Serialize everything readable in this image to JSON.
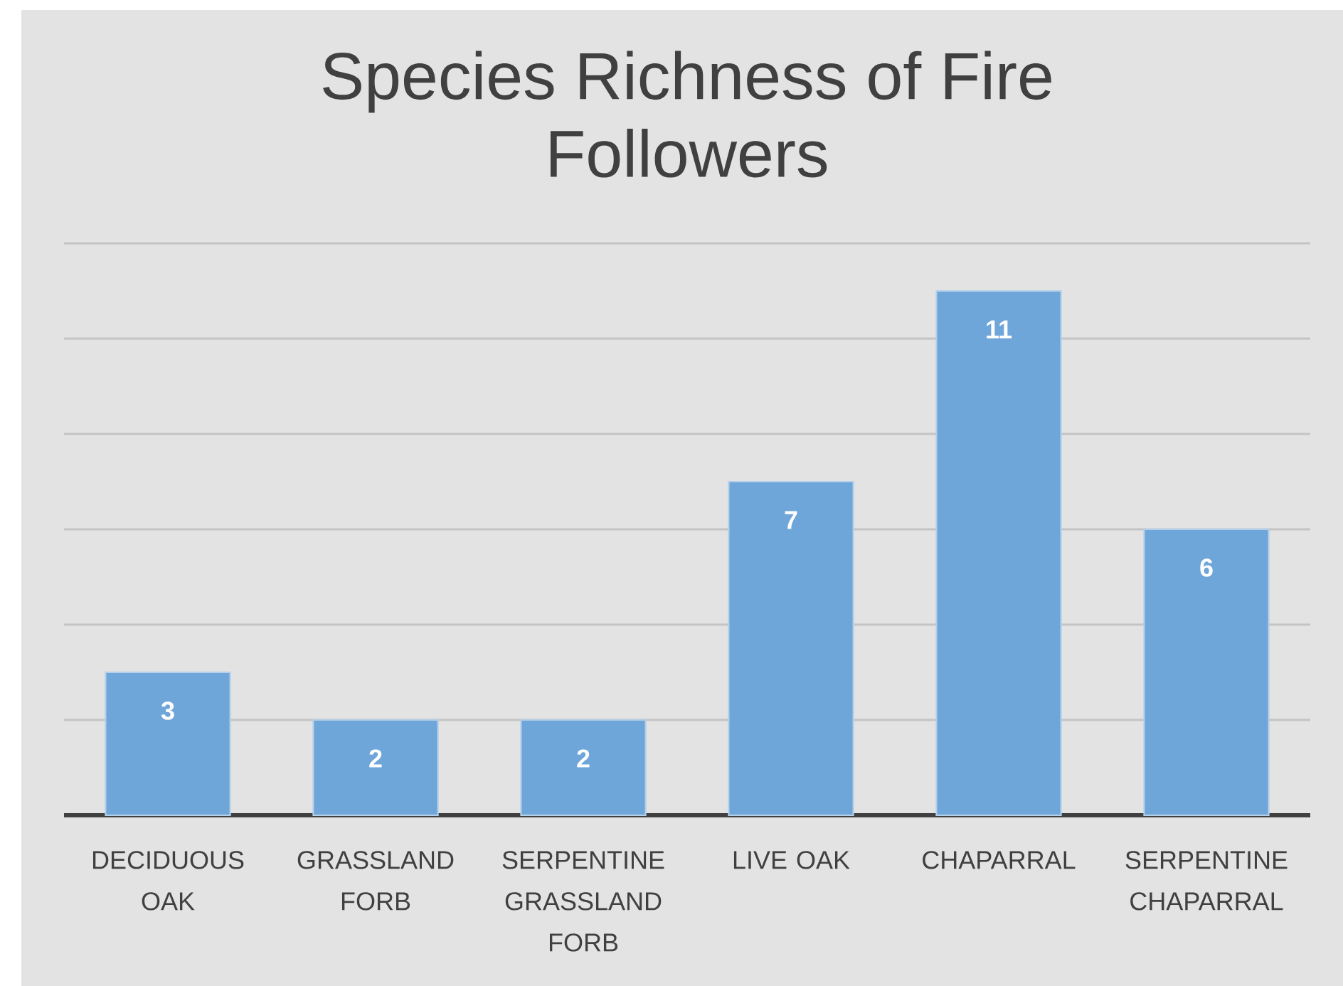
{
  "chart_data": {
    "type": "bar",
    "title": "Species Richness of Fire Followers",
    "categories": [
      "DECIDUOUS OAK",
      "GRASSLAND FORB",
      "SERPENTINE GRASSLAND FORB",
      "LIVE OAK",
      "CHAPARRAL",
      "SERPENTINE CHAPARRAL"
    ],
    "values": [
      3,
      2,
      2,
      7,
      11,
      6
    ],
    "color": "#6fa6d9",
    "ylim": [
      0,
      12
    ],
    "yticks": [
      {
        "value": 0,
        "label": null
      },
      {
        "value": 2,
        "label": null
      },
      {
        "value": 4,
        "label": null
      },
      {
        "value": 6,
        "label": null
      },
      {
        "value": 8,
        "label": null
      },
      {
        "value": 10,
        "label": null
      },
      {
        "value": 12,
        "label": null
      }
    ],
    "grid": "y",
    "data_labels": true,
    "tick_labels": "x"
  }
}
